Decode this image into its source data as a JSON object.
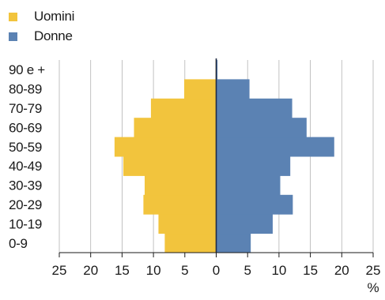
{
  "chart_data": {
    "type": "bar",
    "orientation": "horizontal-pyramid",
    "categories": [
      "0-9",
      "10-19",
      "20-29",
      "30-39",
      "40-49",
      "50-59",
      "60-69",
      "70-79",
      "80-89",
      "90 e +"
    ],
    "series": [
      {
        "name": "Uomini",
        "side": "left",
        "color": "#f2c43d",
        "values": [
          8.2,
          9.2,
          11.6,
          11.4,
          14.8,
          16.2,
          13.1,
          10.4,
          5.1,
          0.1
        ]
      },
      {
        "name": "Donne",
        "side": "right",
        "color": "#5b82b3",
        "values": [
          5.5,
          9.0,
          12.2,
          10.2,
          11.8,
          18.8,
          14.4,
          12.1,
          5.3,
          0.2
        ]
      }
    ],
    "xticks": [
      "25",
      "20",
      "15",
      "10",
      "5",
      "0",
      "5",
      "10",
      "15",
      "20",
      "25"
    ],
    "xlim": [
      -25,
      25
    ],
    "xunit": "%",
    "grid": "vertical",
    "legend": "top-left"
  }
}
